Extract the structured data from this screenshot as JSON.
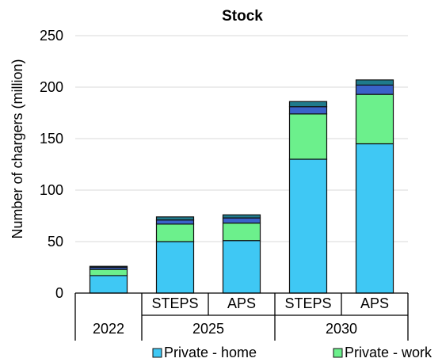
{
  "chart_data": {
    "type": "bar",
    "stacked": true,
    "title": "Stock",
    "ylabel": "Number of chargers (million)",
    "ylim": [
      0,
      250
    ],
    "yticks": [
      "0",
      "50",
      "100",
      "150",
      "200",
      "250"
    ],
    "grid": true,
    "bars": [
      {
        "label": "",
        "group": "2022"
      },
      {
        "label": "STEPS",
        "group": "2025"
      },
      {
        "label": "APS",
        "group": "2025"
      },
      {
        "label": "STEPS",
        "group": "2030"
      },
      {
        "label": "APS",
        "group": "2030"
      }
    ],
    "groups": [
      "2022",
      "2025",
      "2030"
    ],
    "series": [
      {
        "name": "Private - home",
        "color": "#3fc8f4",
        "values": [
          17,
          50,
          51,
          130,
          145
        ]
      },
      {
        "name": "Private - work",
        "color": "#6cf08c",
        "values": [
          6,
          17,
          17,
          44,
          48
        ]
      },
      {
        "name": "",
        "color": "#3a62c9",
        "values": [
          2,
          4,
          5,
          7,
          9
        ]
      },
      {
        "name": "",
        "color": "#1f7a8c",
        "values": [
          1,
          3,
          3,
          5,
          5
        ]
      }
    ],
    "legend": {
      "placement": "bottom",
      "visible_entries": [
        "Private - home",
        "Private - work"
      ]
    }
  }
}
